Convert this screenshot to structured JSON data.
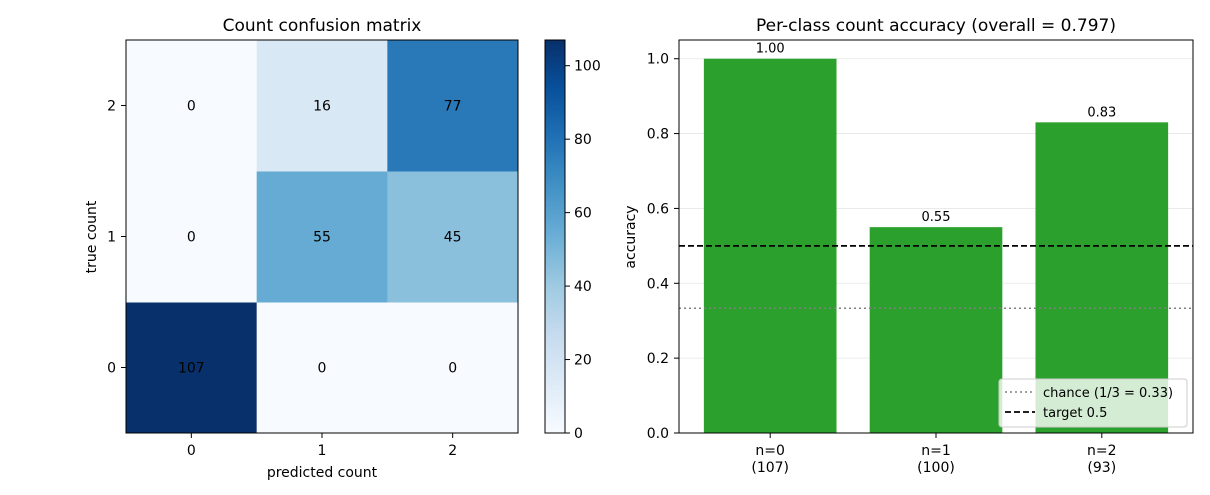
{
  "chart_data": [
    {
      "type": "heatmap",
      "title": "Count confusion matrix",
      "xlabel": "predicted count",
      "ylabel": "true count",
      "x_categories": [
        "0",
        "1",
        "2"
      ],
      "y_categories": [
        "0",
        "1",
        "2"
      ],
      "matrix": [
        [
          107,
          0,
          0
        ],
        [
          0,
          55,
          45
        ],
        [
          0,
          16,
          77
        ]
      ],
      "colorbar": {
        "colormap": "Blues",
        "range": [
          0,
          107
        ],
        "ticks": [
          "0",
          "20",
          "40",
          "60",
          "80",
          "100"
        ]
      }
    },
    {
      "type": "bar",
      "title": "Per-class count accuracy (overall = 0.797)",
      "ylabel": "accuracy",
      "categories": [
        "n=0\n(107)",
        "n=1\n(100)",
        "n=2\n(93)"
      ],
      "values": [
        1.0,
        0.55,
        0.83
      ],
      "value_labels": [
        "1.00",
        "0.55",
        "0.83"
      ],
      "ylim": [
        0,
        1.05
      ],
      "yticks": [
        "0.0",
        "0.2",
        "0.4",
        "0.6",
        "0.8",
        "1.0"
      ],
      "grid": "horizontal",
      "bar_color": "#2ca02c",
      "reference_lines": [
        {
          "label": "chance (1/3 = 0.33)",
          "y": 0.3333,
          "style": "dotted",
          "color": "#808080"
        },
        {
          "label": "target 0.5",
          "y": 0.5,
          "style": "dashed",
          "color": "#000000"
        }
      ],
      "legend_position": "lower-right"
    }
  ]
}
